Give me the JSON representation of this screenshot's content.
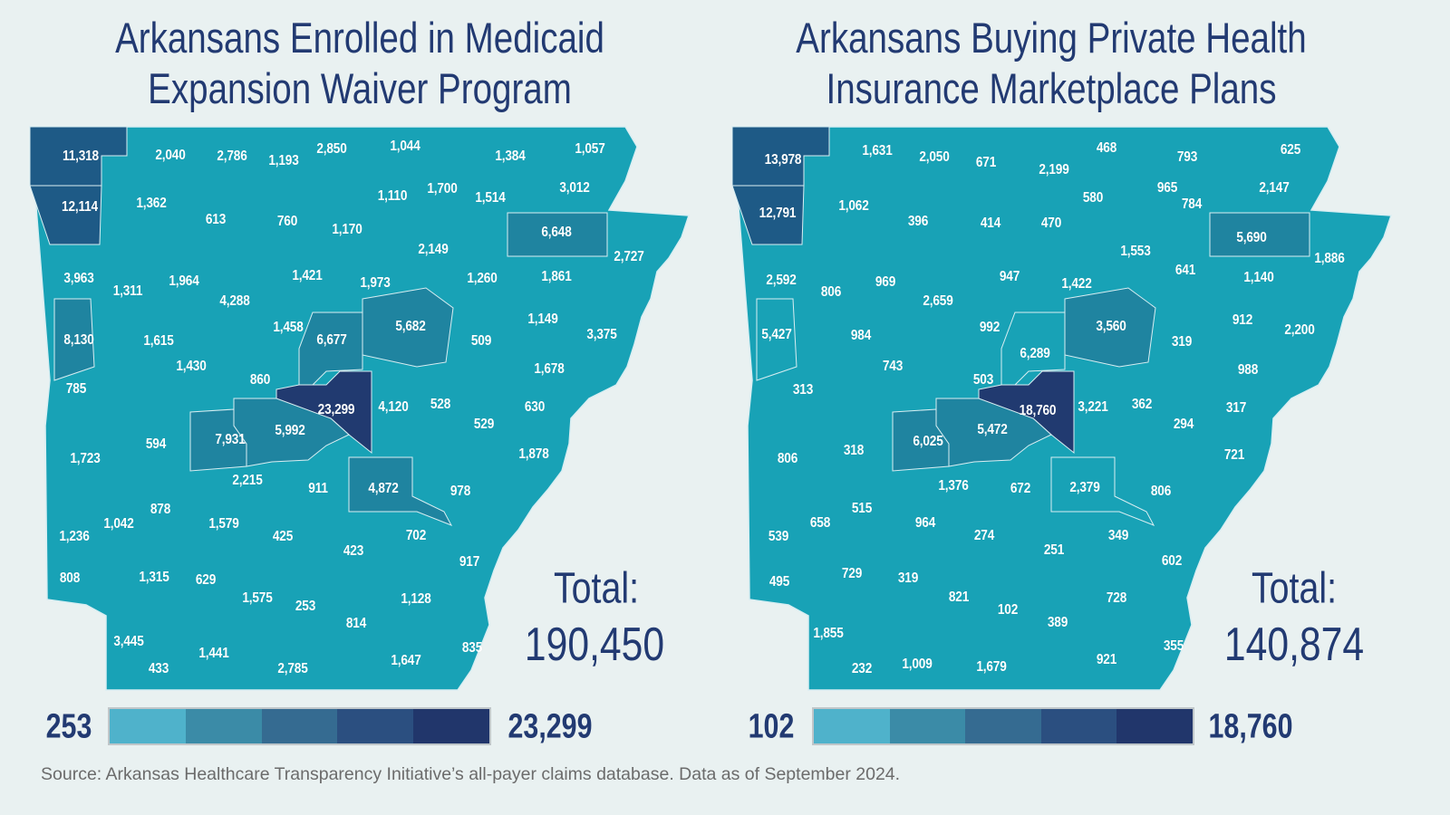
{
  "maps": [
    {
      "title_line1": "Arkansans Enrolled in Medicaid",
      "title_line2": "Expansion Waiver Program",
      "total_label": "Total:",
      "total_value": "190,450",
      "legend": {
        "min": "253",
        "max": "23,299",
        "colors": [
          "#4fb2cb",
          "#3b8ba7",
          "#356b91",
          "#2b4f80",
          "#21366b"
        ]
      },
      "counties": [
        "11,318",
        "2,040",
        "2,786",
        "1,193",
        "2,850",
        "1,044",
        "1,384",
        "1,057",
        "12,114",
        "1,362",
        "613",
        "760",
        "1,170",
        "1,110",
        "1,700",
        "1,514",
        "3,012",
        "6,648",
        "2,149",
        "2,727",
        "3,963",
        "1,311",
        "1,964",
        "4,288",
        "1,421",
        "1,973",
        "1,260",
        "1,861",
        "5,682",
        "1,458",
        "6,677",
        "8,130",
        "1,615",
        "1,430",
        "860",
        "509",
        "1,149",
        "3,375",
        "1,678",
        "785",
        "23,299",
        "4,120",
        "528",
        "630",
        "529",
        "7,931",
        "5,992",
        "594",
        "1,723",
        "1,878",
        "2,215",
        "911",
        "4,872",
        "978",
        "878",
        "1,042",
        "1,236",
        "1,579",
        "425",
        "423",
        "702",
        "917",
        "808",
        "1,315",
        "629",
        "1,575",
        "253",
        "814",
        "1,128",
        "3,445",
        "433",
        "1,441",
        "2,785",
        "1,647",
        "835"
      ]
    },
    {
      "title_line1": "Arkansans Buying Private Health",
      "title_line2": "Insurance Marketplace Plans",
      "total_label": "Total:",
      "total_value": "140,874",
      "legend": {
        "min": "102",
        "max": "18,760",
        "colors": [
          "#4fb2cb",
          "#3b8ba7",
          "#356b91",
          "#2b4f80",
          "#21366b"
        ]
      },
      "counties": [
        "13,978",
        "1,631",
        "2,050",
        "671",
        "2,199",
        "468",
        "793",
        "625",
        "12,791",
        "1,062",
        "396",
        "414",
        "470",
        "580",
        "965",
        "784",
        "2,147",
        "5,690",
        "1,553",
        "1,886",
        "2,592",
        "806",
        "969",
        "2,659",
        "947",
        "1,422",
        "641",
        "1,140",
        "5,427",
        "984",
        "743",
        "992",
        "6,289",
        "3,560",
        "319",
        "912",
        "2,200",
        "988",
        "313",
        "503",
        "18,760",
        "3,221",
        "362",
        "317",
        "294",
        "6,025",
        "5,472",
        "318",
        "806",
        "721",
        "1,376",
        "672",
        "2,379",
        "806",
        "515",
        "658",
        "964",
        "274",
        "251",
        "349",
        "539",
        "602",
        "729",
        "319",
        "495",
        "821",
        "102",
        "728",
        "389",
        "1,855",
        "232",
        "1,009",
        "1,679",
        "921",
        "355"
      ]
    }
  ],
  "colors": {
    "base": "#18a2b6",
    "medium": "#1f84a0",
    "dark": "#1e5a86",
    "darkest": "#213a70",
    "border": "#d9eef2",
    "title": "#223a72"
  },
  "source": "Source: Arkansas Healthcare Transparency Initiative’s all-payer claims database. Data as of September 2024."
}
